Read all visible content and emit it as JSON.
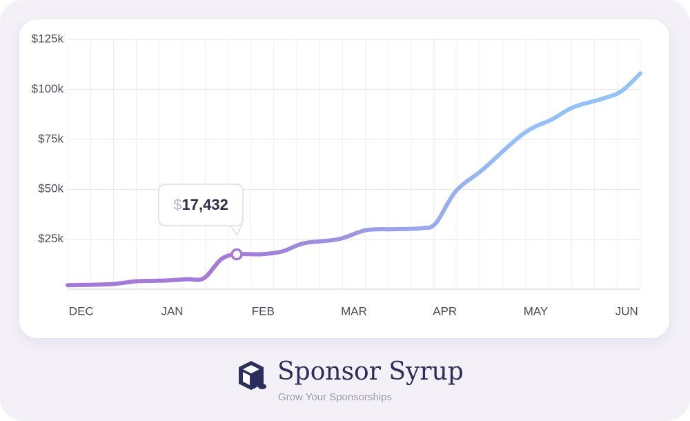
{
  "chart_data": {
    "type": "line",
    "x": [
      -0.15,
      0.32,
      0.62,
      0.92,
      1.16,
      1.35,
      1.54,
      1.71,
      1.99,
      2.22,
      2.45,
      2.83,
      3.13,
      3.43,
      3.74,
      3.9,
      4.12,
      4.42,
      4.87,
      5.18,
      5.41,
      5.71,
      5.94,
      6.15
    ],
    "series": [
      {
        "color": "#a37ad6",
        "values": [
          2000,
          2500,
          4000,
          4300,
          5000,
          5500,
          15000,
          17432,
          17500,
          19000,
          23000,
          25000,
          29500,
          30000,
          30500,
          33000,
          49000,
          60000,
          78000,
          85000,
          91000,
          95000,
          99000,
          108000
        ]
      }
    ],
    "end_color": "#93c2f8",
    "xlim": [
      -0.15,
      6.15
    ],
    "xticks": [
      {
        "value": 0,
        "label": "DEC"
      },
      {
        "value": 1,
        "label": "JAN"
      },
      {
        "value": 2,
        "label": "FEB"
      },
      {
        "value": 3,
        "label": "MAR"
      },
      {
        "value": 4,
        "label": "APR"
      },
      {
        "value": 5,
        "label": "MAY"
      },
      {
        "value": 6,
        "label": "JUN"
      }
    ],
    "ylim": [
      0,
      125000
    ],
    "yticks": [
      {
        "value": 25000,
        "label": "$25k"
      },
      {
        "value": 50000,
        "label": "$50k"
      },
      {
        "value": 75000,
        "label": "$75k"
      },
      {
        "value": 100000,
        "label": "$100k"
      },
      {
        "value": 125000,
        "label": "$125k"
      }
    ],
    "grid": true,
    "tooltip": {
      "x": 1.71,
      "value": 17432,
      "label": "$17,432"
    }
  },
  "brand": {
    "name": "Sponsor Syrup",
    "tagline": "Grow Your Sponsorships"
  }
}
